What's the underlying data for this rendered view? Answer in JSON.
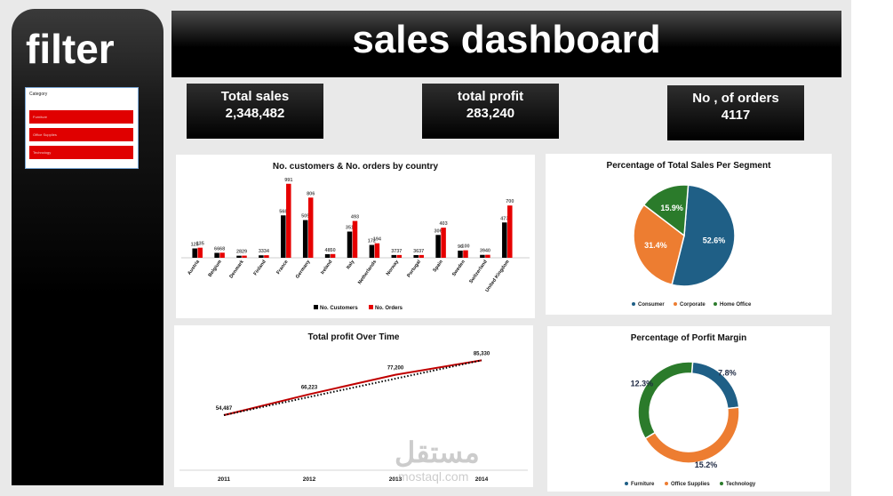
{
  "sidebar": {
    "title": "filter",
    "slicer": {
      "header": "Category",
      "items": [
        "Furniture",
        "Office Supplies",
        "Technology"
      ]
    }
  },
  "header": {
    "title": "sales dashboard"
  },
  "kpis": [
    {
      "label": "Total sales",
      "value": "2,348,482"
    },
    {
      "label": "total profit",
      "value": "283,240"
    },
    {
      "label": "No , of orders",
      "value": "4117"
    }
  ],
  "watermark": {
    "logo": "مستقل",
    "text": "mostaql.com"
  },
  "chart_data": [
    {
      "type": "bar",
      "title": "No. customers & No. orders by country",
      "categories": [
        "Austria",
        "Belgium",
        "Denmark",
        "Finland",
        "France",
        "Germany",
        "Ireland",
        "Italy",
        "Netherlands",
        "Norway",
        "Portugal",
        "Spain",
        "Sweden",
        "Switzerland",
        "United Kingdom"
      ],
      "series": [
        {
          "name": "No. Customers",
          "color": "#000000",
          "values": [
            125,
            66,
            28,
            33,
            568,
            505,
            48,
            351,
            172,
            37,
            36,
            306,
            96,
            39,
            473
          ]
        },
        {
          "name": "No. Orders",
          "color": "#e60000",
          "values": [
            135,
            68,
            29,
            34,
            991,
            806,
            50,
            493,
            194,
            37,
            37,
            403,
            100,
            40,
            700
          ]
        }
      ],
      "ylim": [
        0,
        1000
      ],
      "legend": "bottom"
    },
    {
      "type": "pie",
      "title": "Percentage of Total Sales Per Segment",
      "labels": [
        "Consumer",
        "Corporate",
        "Home Office"
      ],
      "values": [
        52.6,
        31.4,
        15.9
      ],
      "value_labels": [
        "52.6%",
        "31.4%",
        "15.9%"
      ],
      "colors": [
        "#1f5f86",
        "#ed7d31",
        "#2b7b2b"
      ],
      "legend": "bottom"
    },
    {
      "type": "line",
      "title": "Total profit Over Time",
      "x": [
        "2011",
        "2012",
        "2013",
        "2014"
      ],
      "series": [
        {
          "values": [
            54487,
            66223,
            77200,
            85330
          ]
        }
      ],
      "value_labels": [
        "54,487",
        "66,223",
        "77,200",
        "85,330"
      ],
      "trendline": true
    },
    {
      "type": "pie",
      "subtype": "donut",
      "title": "Percentage of Porfit Margin",
      "labels": [
        "Furniture",
        "Office Supplies",
        "Technology"
      ],
      "values": [
        7.8,
        15.2,
        12.3
      ],
      "value_labels": [
        "7.8%",
        "15.2%",
        "12.3%"
      ],
      "colors": [
        "#1f5f86",
        "#ed7d31",
        "#2b7b2b"
      ],
      "legend": "bottom"
    }
  ]
}
